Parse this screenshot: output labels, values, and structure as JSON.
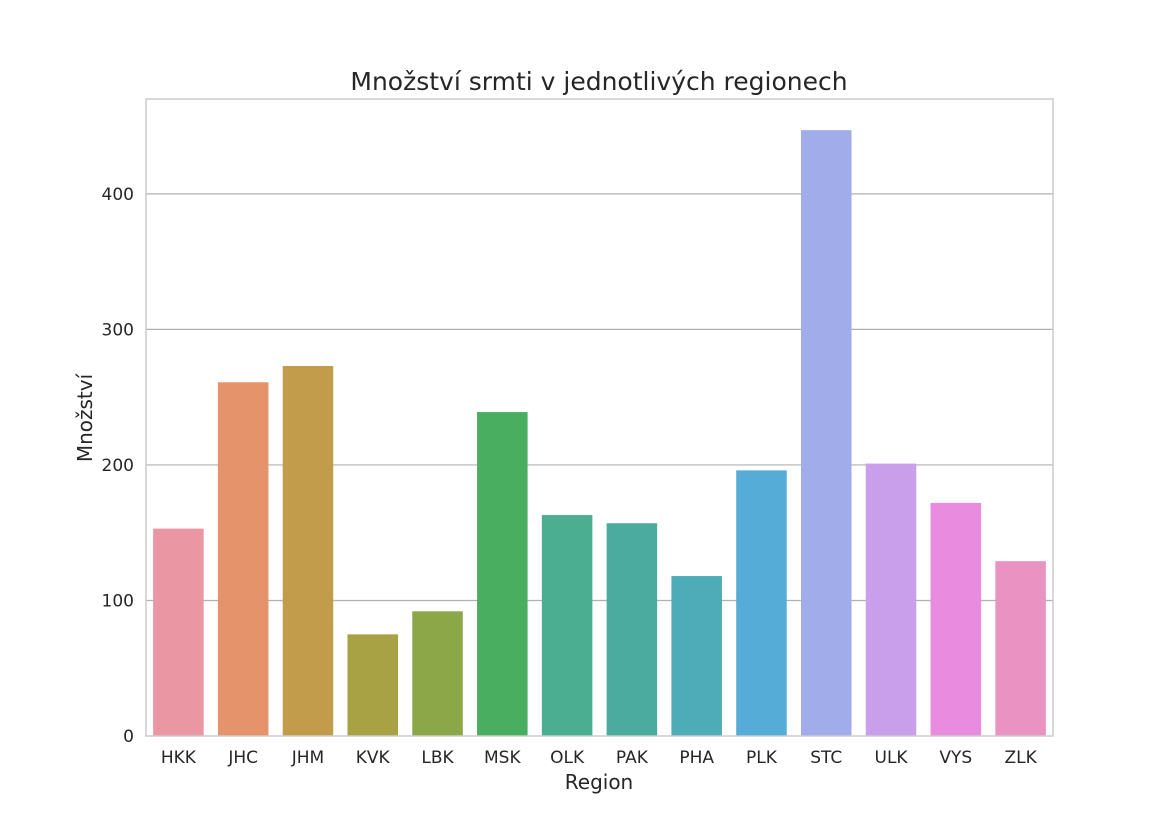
{
  "chart_data": {
    "type": "bar",
    "title": "Množství srmti v jednotlivých regionech",
    "xlabel": "Region",
    "ylabel": "Množství",
    "categories": [
      "HKK",
      "JHC",
      "JHM",
      "KVK",
      "LBK",
      "MSK",
      "OLK",
      "PAK",
      "PHA",
      "PLK",
      "STC",
      "ULK",
      "VYS",
      "ZLK"
    ],
    "values": [
      153,
      261,
      273,
      75,
      92,
      239,
      163,
      157,
      118,
      196,
      447,
      201,
      172,
      129
    ],
    "colors": [
      "#ea96a3",
      "#e5936a",
      "#c29b4b",
      "#a8a245",
      "#8ba748",
      "#49ae5f",
      "#4cae91",
      "#4bab9f",
      "#4eabb8",
      "#55acd6",
      "#a1acea",
      "#c99eea",
      "#e98ce0",
      "#ea92c2"
    ],
    "ylim": [
      0,
      470
    ],
    "yticks": [
      0,
      100,
      200,
      300,
      400
    ],
    "grid": true,
    "legend": "none"
  }
}
